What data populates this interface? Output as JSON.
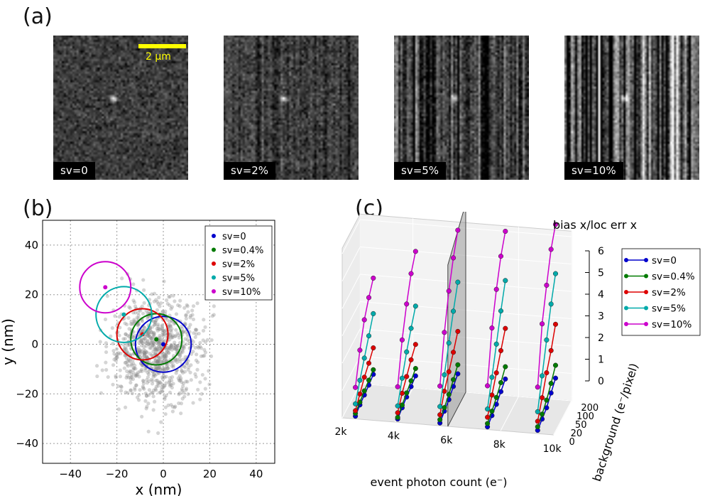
{
  "panels": {
    "a": "(a)",
    "b": "(b)",
    "c": "(c)"
  },
  "micrographs": [
    {
      "caption": "sv=0",
      "vertical_stripes": 0
    },
    {
      "caption": "sv=2%",
      "vertical_stripes": 0.02
    },
    {
      "caption": "sv=5%",
      "vertical_stripes": 0.05
    },
    {
      "caption": "sv=10%",
      "vertical_stripes": 0.1
    }
  ],
  "scale_bar": {
    "label": "2 μm",
    "color": "#ffff00"
  },
  "chart_data": [
    {
      "type": "scatter",
      "xlabel": "x (nm)",
      "ylabel": "y (nm)",
      "xlim": [
        -52,
        48
      ],
      "ylim": [
        -48,
        50
      ],
      "xticks": [
        "−40",
        "−20",
        "0",
        "20",
        "40"
      ],
      "yticks": [
        "−40",
        "−20",
        "0",
        "20",
        "40"
      ],
      "grid": true,
      "legend_position": "top-right",
      "cloud": {
        "center": [
          -3,
          -2
        ],
        "spread": 10,
        "count": 900,
        "color": "#888888"
      },
      "series": [
        {
          "name": "sv=0",
          "color": "#0000cc",
          "center": [
            0,
            0
          ],
          "radius": 12
        },
        {
          "name": "sv=0.4%",
          "color": "#007a00",
          "center": [
            -3,
            2
          ],
          "radius": 11
        },
        {
          "name": "sv=2%",
          "color": "#dd0000",
          "center": [
            -9,
            4
          ],
          "radius": 11
        },
        {
          "name": "sv=5%",
          "color": "#00aaaa",
          "center": [
            -17,
            12
          ],
          "radius": 12
        },
        {
          "name": "sv=10%",
          "color": "#cc00cc",
          "center": [
            -25,
            23
          ],
          "radius": 11
        }
      ]
    },
    {
      "type": "line",
      "title": "bias x/loc err x",
      "xlabel": "event photon count (e⁻)",
      "depth_label": "background (e⁻/pixel)",
      "x_ticks": [
        "2k",
        "4k",
        "6k",
        "8k",
        "10k"
      ],
      "depth_ticks": [
        "0",
        "20",
        "50",
        "100",
        "200"
      ],
      "z_ticks": [
        "0",
        "1",
        "2",
        "3",
        "4",
        "5",
        "6"
      ],
      "zlim": [
        0,
        6
      ],
      "legend_position": "right",
      "series": [
        {
          "name": "sv=0",
          "color": "#0000cc",
          "values": [
            [
              0.1,
              0.2,
              0.25,
              0.3,
              0.38
            ],
            [
              0.12,
              0.22,
              0.3,
              0.37,
              0.45
            ],
            [
              0.1,
              0.22,
              0.33,
              0.5,
              0.65
            ],
            [
              0.1,
              0.2,
              0.3,
              0.45,
              0.6
            ],
            [
              0.12,
              0.22,
              0.32,
              0.55,
              0.78
            ]
          ]
        },
        {
          "name": "sv=0.4%",
          "color": "#007a00",
          "values": [
            [
              0.2,
              0.3,
              0.4,
              0.48,
              0.55
            ],
            [
              0.18,
              0.32,
              0.45,
              0.58,
              0.72
            ],
            [
              0.22,
              0.35,
              0.52,
              0.75,
              0.98
            ],
            [
              0.22,
              0.36,
              0.55,
              0.78,
              1.05
            ],
            [
              0.25,
              0.4,
              0.6,
              0.9,
              1.25
            ]
          ]
        },
        {
          "name": "sv=2%",
          "color": "#dd0000",
          "values": [
            [
              0.3,
              0.6,
              0.9,
              1.1,
              1.35
            ],
            [
              0.35,
              0.75,
              1.05,
              1.35,
              1.6
            ],
            [
              0.4,
              0.95,
              1.35,
              1.75,
              2.2
            ],
            [
              0.45,
              0.95,
              1.45,
              1.95,
              2.45
            ],
            [
              0.45,
              1.0,
              1.6,
              2.1,
              2.75
            ]
          ]
        },
        {
          "name": "sv=5%",
          "color": "#00aaaa",
          "values": [
            [
              0.55,
              1.1,
              1.6,
              2.1,
              2.6
            ],
            [
              0.6,
              1.3,
              1.95,
              2.5,
              3.0
            ],
            [
              0.7,
              1.55,
              2.4,
              3.25,
              4.0
            ],
            [
              0.75,
              1.6,
              2.5,
              3.4,
              4.2
            ],
            [
              0.8,
              1.8,
              2.8,
              3.8,
              4.6
            ]
          ]
        },
        {
          "name": "sv=10%",
          "color": "#cc00cc",
          "values": [
            [
              1.15,
              2.2,
              3.0,
              3.5,
              3.9
            ],
            [
              1.3,
              2.7,
              3.7,
              4.5,
              5.0
            ],
            [
              1.45,
              3.1,
              4.3,
              5.2,
              5.9
            ],
            [
              1.6,
              3.4,
              4.5,
              5.4,
              6.0
            ],
            [
              1.7,
              3.7,
              4.8,
              5.8,
              6.4
            ]
          ]
        }
      ]
    }
  ]
}
